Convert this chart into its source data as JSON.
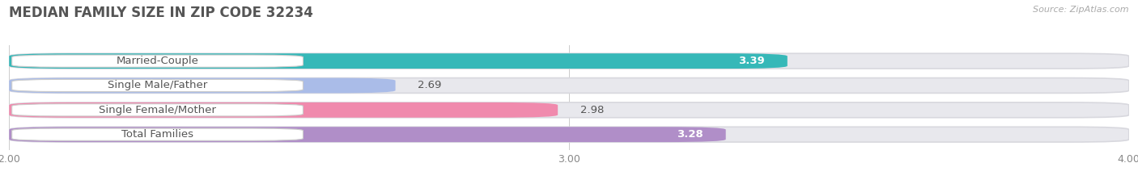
{
  "title": "MEDIAN FAMILY SIZE IN ZIP CODE 32234",
  "source": "Source: ZipAtlas.com",
  "categories": [
    "Married-Couple",
    "Single Male/Father",
    "Single Female/Mother",
    "Total Families"
  ],
  "values": [
    3.39,
    2.69,
    2.98,
    3.28
  ],
  "bar_colors": [
    "#36b8b8",
    "#aabce8",
    "#f08aad",
    "#b08ec8"
  ],
  "bar_bg_color": "#e8e8ed",
  "xlim": [
    2.0,
    4.0
  ],
  "xticks": [
    2.0,
    3.0,
    4.0
  ],
  "xtick_labels": [
    "2.00",
    "3.00",
    "4.00"
  ],
  "fig_bg_color": "#ffffff",
  "bar_height": 0.62,
  "label_fontsize": 9.5,
  "title_fontsize": 12,
  "source_fontsize": 8
}
